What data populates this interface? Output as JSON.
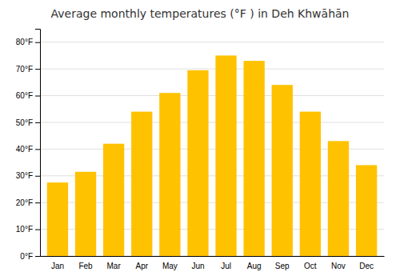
{
  "chart_data": {
    "type": "bar",
    "title": "Average monthly temperatures (°F ) in Deh Khwāhān",
    "categories": [
      "Jan",
      "Feb",
      "Mar",
      "Apr",
      "May",
      "Jun",
      "Jul",
      "Aug",
      "Sep",
      "Oct",
      "Nov",
      "Dec"
    ],
    "values": [
      27.5,
      31.5,
      42.0,
      54.0,
      61.0,
      69.5,
      75.0,
      73.0,
      64.0,
      54.0,
      43.0,
      34.0
    ],
    "color": "#FFC200",
    "ylim": [
      0,
      85
    ],
    "yticks": [
      {
        "value": 0,
        "label": "0°F"
      },
      {
        "value": 10,
        "label": "10°F"
      },
      {
        "value": 20,
        "label": "20°F"
      },
      {
        "value": 30,
        "label": "30°F"
      },
      {
        "value": 40,
        "label": "40°F"
      },
      {
        "value": 50,
        "label": "50°F"
      },
      {
        "value": 60,
        "label": "60°F"
      },
      {
        "value": 70,
        "label": "70°F"
      },
      {
        "value": 80,
        "label": "80°F"
      }
    ],
    "grid": true
  }
}
